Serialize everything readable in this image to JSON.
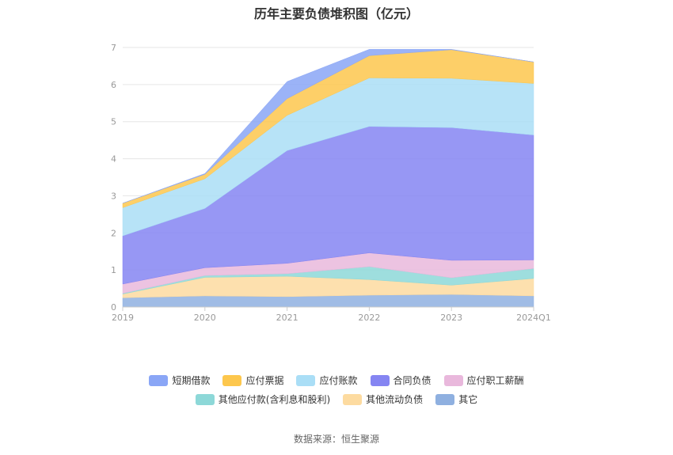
{
  "chart_data": {
    "type": "area",
    "stacked": true,
    "title": "历年主要负债堆积图（亿元）",
    "categories": [
      "2019",
      "2020",
      "2021",
      "2022",
      "2023",
      "2024Q1"
    ],
    "ylim": [
      0,
      7
    ],
    "yticks": [
      0,
      1,
      2,
      3,
      4,
      5,
      6,
      7
    ],
    "grid": true,
    "legend_position": "bottom",
    "series": [
      {
        "name": "其它",
        "color": "#8fb0e0",
        "values": [
          0.25,
          0.3,
          0.28,
          0.32,
          0.34,
          0.3
        ]
      },
      {
        "name": "其他流动负债",
        "color": "#fddba0",
        "values": [
          0.1,
          0.5,
          0.55,
          0.42,
          0.25,
          0.47
        ]
      },
      {
        "name": "其他应付款(含利息和股利)",
        "color": "#8dd8d8",
        "values": [
          0.02,
          0.05,
          0.07,
          0.35,
          0.2,
          0.27
        ]
      },
      {
        "name": "应付职工薪酬",
        "color": "#e9b8dc",
        "values": [
          0.25,
          0.21,
          0.28,
          0.37,
          0.47,
          0.23
        ]
      },
      {
        "name": "合同负债",
        "color": "#8585f2",
        "values": [
          1.3,
          1.6,
          3.04,
          3.41,
          3.58,
          3.37
        ]
      },
      {
        "name": "应付账款",
        "color": "#aadeF6",
        "values": [
          0.76,
          0.8,
          0.95,
          1.31,
          1.33,
          1.39
        ]
      },
      {
        "name": "应付票据",
        "color": "#fdc74d",
        "values": [
          0.12,
          0.12,
          0.45,
          0.6,
          0.77,
          0.58
        ]
      },
      {
        "name": "短期借款",
        "color": "#8aa6f6",
        "values": [
          0.0,
          0.02,
          0.46,
          0.17,
          0.01,
          0.0
        ]
      }
    ],
    "source": "数据来源：恒生聚源"
  },
  "legend": {
    "row1": [
      "短期借款",
      "应付票据",
      "应付账款",
      "合同负债",
      "应付职工薪酬"
    ],
    "row2": [
      "其他应付款(含利息和股利)",
      "其他流动负债",
      "其它"
    ]
  }
}
